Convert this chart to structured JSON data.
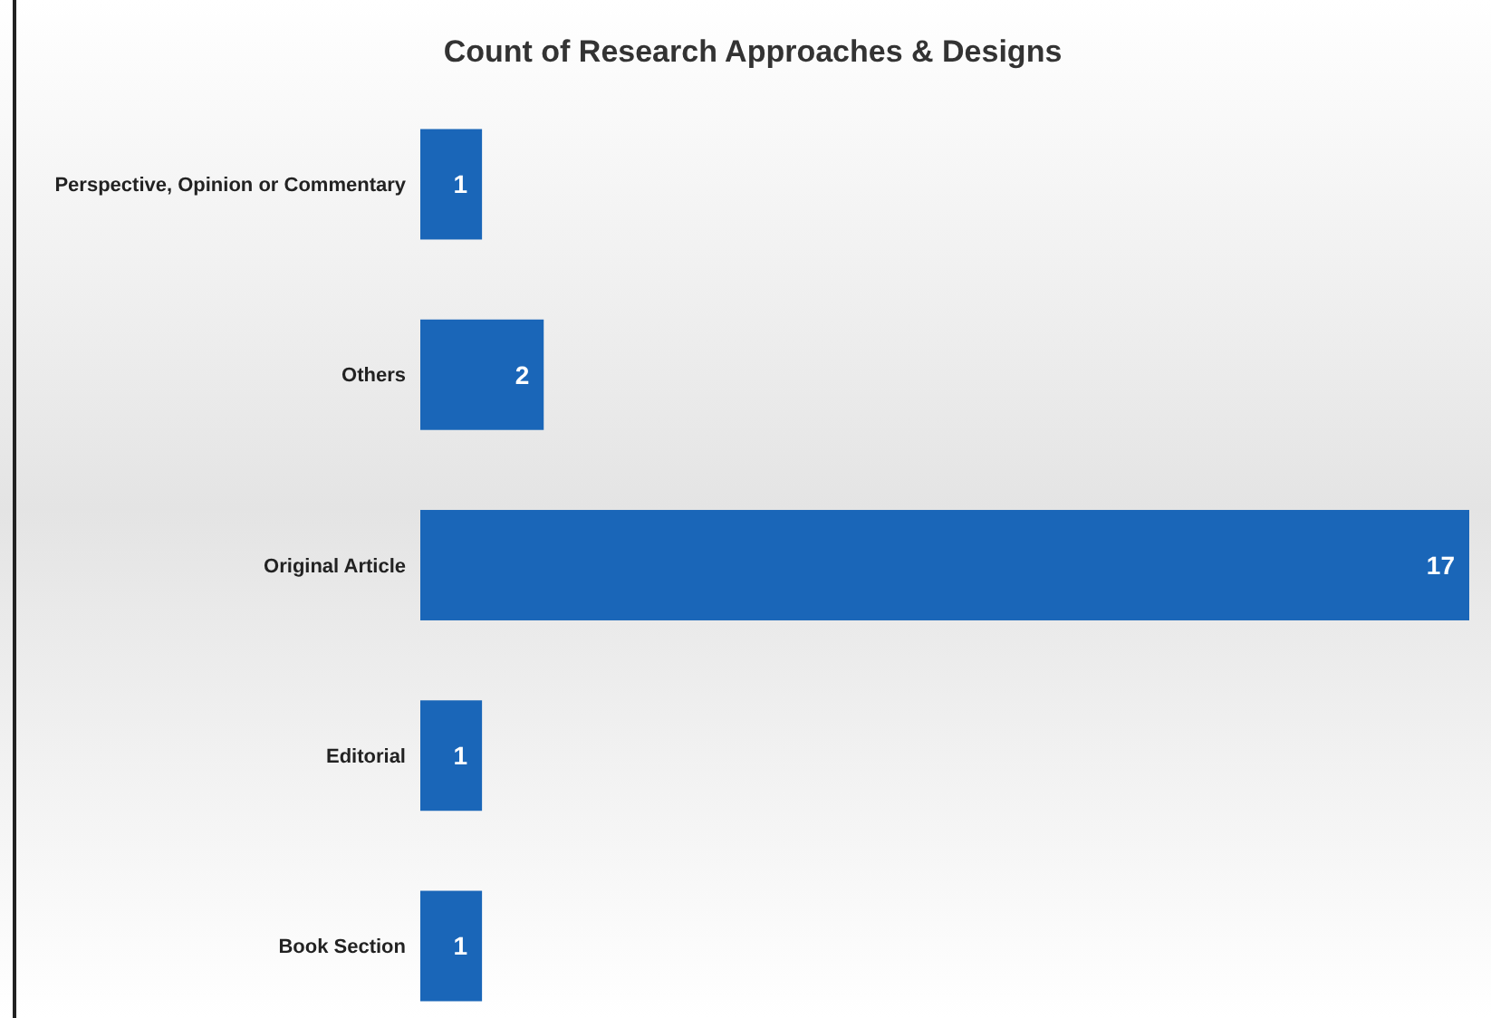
{
  "chart_data": {
    "type": "bar",
    "orientation": "horizontal",
    "title": "Count of Research Approaches & Designs",
    "categories": [
      "Perspective, Opinion or Commentary",
      "Others",
      "Original Article",
      "Editorial",
      "Book Section"
    ],
    "values": [
      1,
      2,
      17,
      1,
      1
    ],
    "color": "#1a66b8",
    "data_labels": true,
    "grid": false
  }
}
